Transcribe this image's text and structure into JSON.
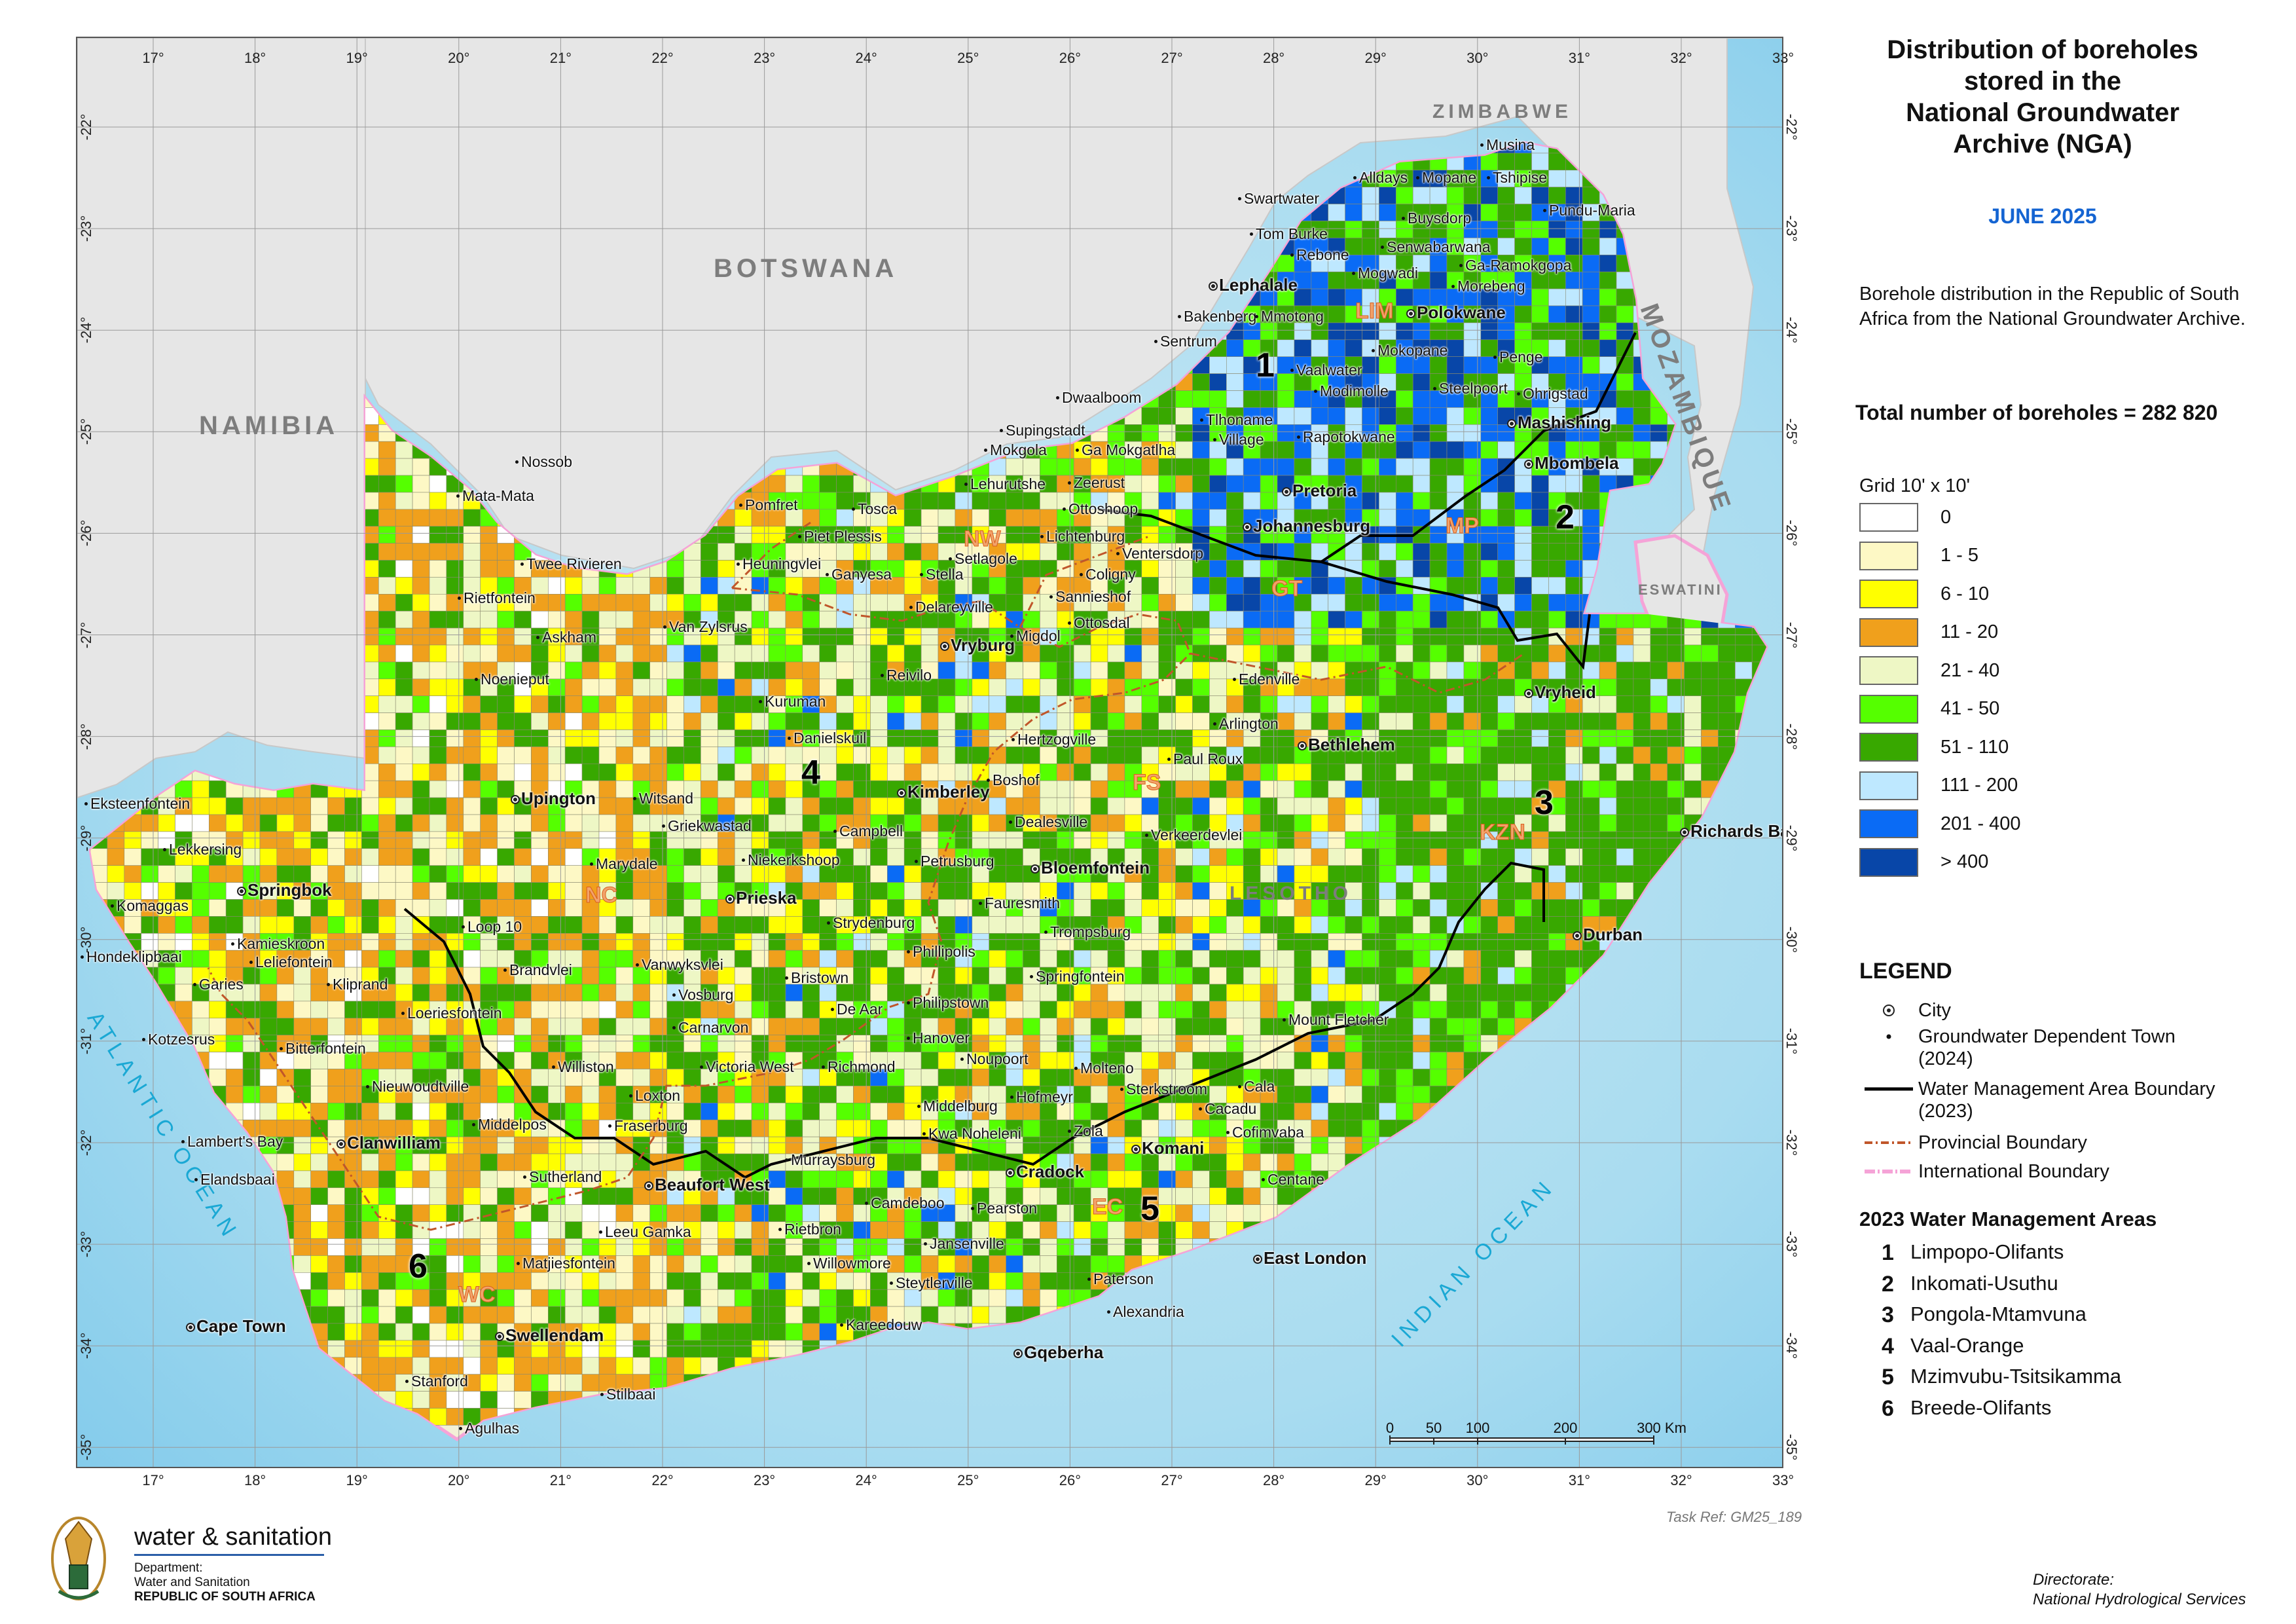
{
  "title_lines": [
    "Distribution of boreholes",
    "stored in the",
    "National Groundwater",
    "Archive (NGA)"
  ],
  "date": "JUNE 2025",
  "description": "Borehole distribution in the Republic of South Africa from the National Groundwater Archive.",
  "total": "Total number of boreholes = 282 820",
  "grid_legend": {
    "title": "Grid 10' x 10'",
    "classes": [
      {
        "label": "0",
        "color": "#ffffff"
      },
      {
        "label": "1 - 5",
        "color": "#fdf8c5"
      },
      {
        "label": "6 - 10",
        "color": "#ffff00"
      },
      {
        "label": "11 - 20",
        "color": "#f0a01c"
      },
      {
        "label": "21 - 40",
        "color": "#eef7c5"
      },
      {
        "label": "41 - 50",
        "color": "#55ff00"
      },
      {
        "label": "51 - 110",
        "color": "#38a800"
      },
      {
        "label": "111 - 200",
        "color": "#bee8ff"
      },
      {
        "label": "201 - 400",
        "color": "#0a6bf5"
      },
      {
        "label": "> 400",
        "color": "#0846a8"
      }
    ]
  },
  "legend": {
    "heading": "LEGEND",
    "city": "City",
    "town": "Groundwater Dependent Town (2024)",
    "wma_boundary": "Water Management Area Boundary (2023)",
    "provincial": "Provincial Boundary",
    "international": "International Boundary"
  },
  "wma": {
    "heading": "2023 Water Management Areas",
    "items": [
      {
        "n": "1",
        "name": "Limpopo-Olifants"
      },
      {
        "n": "2",
        "name": "Inkomati-Usuthu"
      },
      {
        "n": "3",
        "name": "Pongola-Mtamvuna"
      },
      {
        "n": "4",
        "name": "Vaal-Orange"
      },
      {
        "n": "5",
        "name": "Mzimvubu-Tsitsikamma"
      },
      {
        "n": "6",
        "name": "Breede-Olifants"
      }
    ]
  },
  "axes": {
    "lon": [
      "17°",
      "18°",
      "19°",
      "20°",
      "21°",
      "22°",
      "23°",
      "24°",
      "25°",
      "26°",
      "27°",
      "28°",
      "29°",
      "30°",
      "31°",
      "32°",
      "33°"
    ],
    "lat": [
      "-22°",
      "-23°",
      "-24°",
      "-25°",
      "-26°",
      "-27°",
      "-28°",
      "-29°",
      "-30°",
      "-31°",
      "-32°",
      "-33°",
      "-34°",
      "-35°"
    ]
  },
  "countries": [
    "ZIMBABWE",
    "BOTSWANA",
    "NAMIBIA",
    "MOZAMBIQUE",
    "ESWATINI",
    "LESOTHO"
  ],
  "oceans": [
    "ATLANTIC OCEAN",
    "INDIAN OCEAN"
  ],
  "provinces": [
    "LIM",
    "MP",
    "NW",
    "GT",
    "FS",
    "KZN",
    "NC",
    "EC",
    "WC"
  ],
  "wma_numbers": [
    "1",
    "2",
    "3",
    "4",
    "5",
    "6"
  ],
  "scale": {
    "labels": [
      "0",
      "50",
      "100",
      "200",
      "300 Km"
    ]
  },
  "cities": [
    "Lephalale",
    "Polokwane",
    "Mashishing",
    "Mbombela",
    "Pretoria",
    "Johannesburg",
    "Vryburg",
    "Kimberley",
    "Upington",
    "Springbok",
    "Prieska",
    "Bloemfontein",
    "Bethlehem",
    "Vryheid",
    "Richards Bay",
    "Durban",
    "Beaufort West",
    "Clanwilliam",
    "Cradock",
    "Komani",
    "East London",
    "Cape Town",
    "Swellendam",
    "Gqeberha"
  ],
  "towns": [
    "Musina",
    "Tshipise",
    "Alldays",
    "Mopane",
    "Swartwater",
    "Pundu-Maria",
    "Buysdorp",
    "Tom Burke",
    "Senwabarwana",
    "Rebone",
    "Ga-Ramokgopa",
    "Mogwadi",
    "Morebeng",
    "Bakenberg",
    "Mmotong",
    "Sentrum",
    "Mokopane",
    "Vaalwater",
    "Penge",
    "Dwaalboom",
    "Modimolle",
    "Steelpoort",
    "Ohrigstad",
    "Tlhoname",
    "Supingstadt",
    "Village",
    "Rapotokwane",
    "Mokgola",
    "Ga Mokgatlha",
    "Lehurutshe",
    "Zeerust",
    "Nossob",
    "Mata-Mata",
    "Pomfret",
    "Tosca",
    "Ottoshoop",
    "Piet Plessis",
    "Lichtenburg",
    "Ventersdorp",
    "Twee Rivieren",
    "Heuningvlei",
    "Setlagole",
    "Ganyesa",
    "Stella",
    "Coligny",
    "Rietfontein",
    "Sannieshof",
    "Delareyville",
    "Askham",
    "Van Zylsrus",
    "Migdol",
    "Ottosdal",
    "Reivilo",
    "Noenieput",
    "Edenville",
    "Kuruman",
    "Arlington",
    "Danielskuil",
    "Hertzogville",
    "Paul Roux",
    "Witsand",
    "Boshof",
    "Eksteenfontein",
    "Griekwastad",
    "Dealesville",
    "Campbell",
    "Verkeerdevlei",
    "Lekkersing",
    "Marydale",
    "Niekerkshoop",
    "Petrusburg",
    "Komaggas",
    "Fauresmith",
    "Loop 10",
    "Strydenburg",
    "Trompsburg",
    "Kamieskroon",
    "Hondeklipbaai",
    "Leliefontein",
    "Phillipolis",
    "Brandvlei",
    "Vanwyksvlei",
    "Springfontein",
    "Garies",
    "Kliprand",
    "Bristown",
    "Vosburg",
    "De Aar",
    "Philipstown",
    "Loeriesfontein",
    "Carnarvon",
    "Mount Fletcher",
    "Kotzesrus",
    "Bitterfontein",
    "Hanover",
    "Noupoort",
    "Williston",
    "Victoria West",
    "Richmond",
    "Molteno",
    "Cala",
    "Nieuwoudtville",
    "Loxton",
    "Hofmeyr",
    "Sterkstroom",
    "Middelburg",
    "Cacadu",
    "Lambert's Bay",
    "Middelpos",
    "Fraserburg",
    "Kwa Noheleni",
    "Zola",
    "Cofimvaba",
    "Elandsbaai",
    "Murraysburg",
    "Sutherland",
    "Centane",
    "Camdeboo",
    "Pearston",
    "Leeu Gamka",
    "Rietbron",
    "Jansenville",
    "Matjiesfontein",
    "Willowmore",
    "Steytlerville",
    "Paterson",
    "Alexandria",
    "Kareedouw",
    "Stanford",
    "Stilbaai",
    "Agulhas"
  ]
}
